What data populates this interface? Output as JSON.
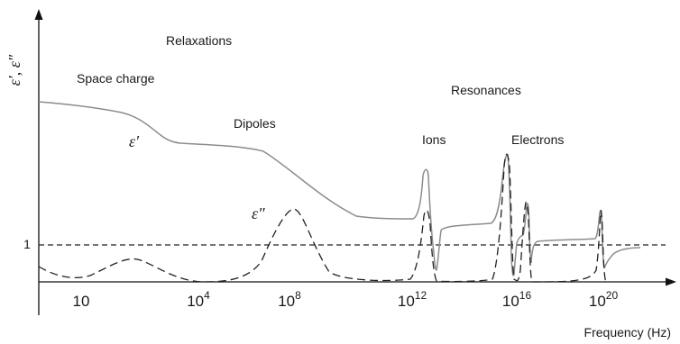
{
  "y_axis_label": "ε′, ε″",
  "x_axis_label": "Frequency (Hz)",
  "region_labels": {
    "relaxations": "Relaxations",
    "resonances": "Resonances"
  },
  "mechanism_labels": {
    "space_charge": "Space charge",
    "dipoles": "Dipoles",
    "ions": "Ions",
    "electrons": "Electrons"
  },
  "curve_labels": {
    "real": "ε′",
    "imag": "ε″"
  },
  "reference_level": {
    "label": "1",
    "value": 1
  },
  "x_ticks": [
    {
      "base": "10",
      "exp": ""
    },
    {
      "base": "10",
      "exp": "4"
    },
    {
      "base": "10",
      "exp": "8"
    },
    {
      "base": "10",
      "exp": "12"
    },
    {
      "base": "10",
      "exp": "16"
    },
    {
      "base": "10",
      "exp": "20"
    }
  ],
  "colors": {
    "real_curve": "#8c8c8c",
    "imag_curve": "#222222",
    "axes": "#111111"
  }
}
